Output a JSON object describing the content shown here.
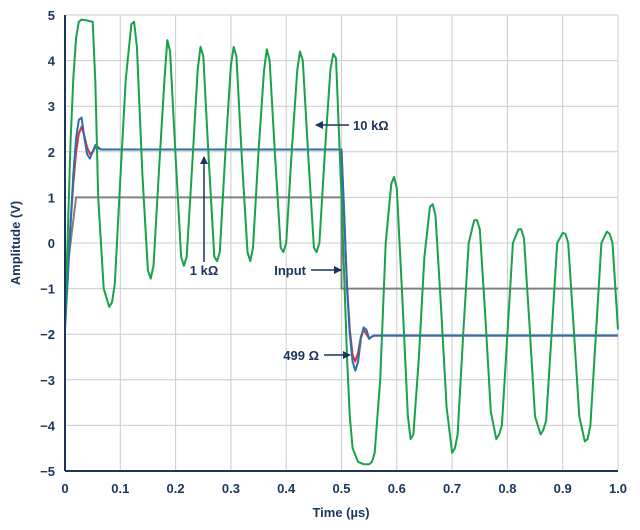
{
  "chart_data": {
    "type": "line",
    "title": "",
    "xlabel": "Time (µs)",
    "ylabel": "Amplitude (V)",
    "xlim": [
      0,
      1.0
    ],
    "ylim": [
      -5,
      5
    ],
    "grid": true,
    "x_ticks": [
      0,
      0.1,
      0.2,
      0.3,
      0.4,
      0.5,
      0.6,
      0.7,
      0.8,
      0.9,
      1.0
    ],
    "x_tick_labels": [
      "0",
      "0.1",
      "0.2",
      "0.3",
      "0.4",
      "0.5",
      "0.6",
      "0.7",
      "0.8",
      "0.9",
      "1.0"
    ],
    "y_ticks": [
      -5,
      -4,
      -3,
      -2,
      -1,
      0,
      1,
      2,
      3,
      4,
      5
    ],
    "y_tick_labels": [
      "−5",
      "−4",
      "−3",
      "−2",
      "−1",
      "0",
      "1",
      "2",
      "3",
      "4",
      "5"
    ],
    "series": [
      {
        "name": "Input",
        "color": "#808080",
        "x": [
          0,
          0.02,
          0.5,
          0.5,
          1.0
        ],
        "y": [
          -1,
          1,
          1,
          -1,
          -1
        ]
      },
      {
        "name": "499 Ω",
        "color": "#d8343f",
        "x": [
          0,
          0.005,
          0.01,
          0.015,
          0.02,
          0.025,
          0.03,
          0.035,
          0.04,
          0.045,
          0.05,
          0.055,
          0.06,
          0.065,
          0.07,
          0.5,
          0.505,
          0.51,
          0.515,
          0.52,
          0.525,
          0.53,
          0.535,
          0.54,
          0.545,
          0.55,
          0.555,
          0.56,
          0.565,
          0.57,
          1.0
        ],
        "y": [
          -1.6,
          -0.6,
          0.4,
          1.3,
          2.0,
          2.4,
          2.55,
          2.35,
          2.1,
          1.95,
          2.0,
          2.1,
          2.08,
          2.05,
          2.05,
          2.05,
          0.5,
          -0.9,
          -1.9,
          -2.45,
          -2.6,
          -2.4,
          -2.05,
          -1.9,
          -2.0,
          -2.1,
          -2.05,
          -2.03,
          -2.03,
          -2.03,
          -2.03
        ]
      },
      {
        "name": "1 kΩ",
        "color": "#2f6ea8",
        "x": [
          0,
          0.005,
          0.01,
          0.015,
          0.02,
          0.025,
          0.03,
          0.035,
          0.04,
          0.045,
          0.05,
          0.055,
          0.06,
          0.065,
          0.07,
          0.5,
          0.505,
          0.51,
          0.515,
          0.52,
          0.525,
          0.53,
          0.535,
          0.54,
          0.545,
          0.55,
          0.555,
          0.56,
          0.565,
          0.57,
          1.0
        ],
        "y": [
          -1.9,
          -0.8,
          0.4,
          1.5,
          2.3,
          2.7,
          2.75,
          2.3,
          1.95,
          1.85,
          2.0,
          2.15,
          2.1,
          2.05,
          2.05,
          2.05,
          0.6,
          -1.0,
          -2.0,
          -2.6,
          -2.8,
          -2.6,
          -2.1,
          -1.85,
          -1.9,
          -2.1,
          -2.05,
          -2.03,
          -2.03,
          -2.03,
          -2.03
        ]
      },
      {
        "name": "10 kΩ",
        "color": "#1aa14b",
        "x": [
          0,
          0.005,
          0.01,
          0.015,
          0.02,
          0.025,
          0.03,
          0.04,
          0.05,
          0.055,
          0.06,
          0.07,
          0.08,
          0.085,
          0.09,
          0.1,
          0.11,
          0.12,
          0.125,
          0.13,
          0.14,
          0.15,
          0.155,
          0.16,
          0.17,
          0.18,
          0.185,
          0.19,
          0.2,
          0.21,
          0.215,
          0.22,
          0.23,
          0.24,
          0.245,
          0.25,
          0.26,
          0.27,
          0.275,
          0.28,
          0.29,
          0.3,
          0.305,
          0.31,
          0.32,
          0.33,
          0.335,
          0.34,
          0.35,
          0.36,
          0.365,
          0.37,
          0.38,
          0.39,
          0.395,
          0.4,
          0.41,
          0.42,
          0.425,
          0.43,
          0.44,
          0.45,
          0.455,
          0.46,
          0.47,
          0.48,
          0.485,
          0.49,
          0.5,
          0.505,
          0.51,
          0.515,
          0.52,
          0.53,
          0.54,
          0.55,
          0.555,
          0.56,
          0.57,
          0.58,
          0.59,
          0.595,
          0.6,
          0.61,
          0.62,
          0.625,
          0.63,
          0.64,
          0.65,
          0.66,
          0.665,
          0.67,
          0.68,
          0.69,
          0.7,
          0.705,
          0.71,
          0.72,
          0.73,
          0.74,
          0.745,
          0.75,
          0.76,
          0.77,
          0.78,
          0.785,
          0.79,
          0.8,
          0.81,
          0.82,
          0.825,
          0.83,
          0.84,
          0.85,
          0.86,
          0.865,
          0.87,
          0.88,
          0.89,
          0.9,
          0.905,
          0.91,
          0.92,
          0.93,
          0.94,
          0.945,
          0.95,
          0.96,
          0.97,
          0.98,
          0.985,
          0.99,
          1.0
        ],
        "y": [
          -1.8,
          0.2,
          2.2,
          3.6,
          4.5,
          4.85,
          4.9,
          4.88,
          4.85,
          3.5,
          1.0,
          -1.0,
          -1.4,
          -1.3,
          -0.9,
          1.4,
          3.6,
          4.8,
          4.85,
          4.3,
          1.5,
          -0.6,
          -0.78,
          -0.5,
          1.6,
          3.6,
          4.45,
          4.2,
          1.9,
          -0.3,
          -0.5,
          -0.3,
          1.7,
          3.8,
          4.3,
          4.1,
          1.8,
          -0.3,
          -0.4,
          -0.2,
          2.0,
          3.9,
          4.3,
          4.1,
          1.8,
          -0.2,
          -0.4,
          -0.1,
          2.0,
          3.8,
          4.25,
          4.0,
          1.9,
          -0.1,
          -0.2,
          0.0,
          2.0,
          3.8,
          4.2,
          4.0,
          1.9,
          -0.1,
          -0.2,
          0.0,
          2.0,
          3.8,
          4.15,
          4.05,
          1.0,
          -0.8,
          -2.5,
          -3.8,
          -4.5,
          -4.8,
          -4.85,
          -4.85,
          -4.8,
          -4.6,
          -3.0,
          0.0,
          1.3,
          1.45,
          1.2,
          -1.2,
          -3.8,
          -4.3,
          -4.2,
          -2.5,
          -0.3,
          0.8,
          0.85,
          0.6,
          -1.4,
          -3.6,
          -4.6,
          -4.5,
          -4.2,
          -2.0,
          0.0,
          0.5,
          0.5,
          0.3,
          -1.6,
          -3.7,
          -4.3,
          -4.2,
          -4.0,
          -2.0,
          0.0,
          0.3,
          0.3,
          0.1,
          -1.8,
          -3.8,
          -4.2,
          -4.1,
          -3.9,
          -2.0,
          0.0,
          0.22,
          0.2,
          0.0,
          -1.9,
          -3.8,
          -4.35,
          -4.3,
          -4.0,
          -2.0,
          0.0,
          0.25,
          0.2,
          0.0,
          -1.9
        ]
      }
    ],
    "annotations": [
      {
        "text": "10 kΩ",
        "series": "10 kΩ"
      },
      {
        "text": "1 kΩ",
        "series": "1 kΩ"
      },
      {
        "text": "Input",
        "series": "Input"
      },
      {
        "text": "499 Ω",
        "series": "499 Ω"
      }
    ],
    "axis_color": "#1b365d",
    "grid_color": "#cccccc"
  }
}
